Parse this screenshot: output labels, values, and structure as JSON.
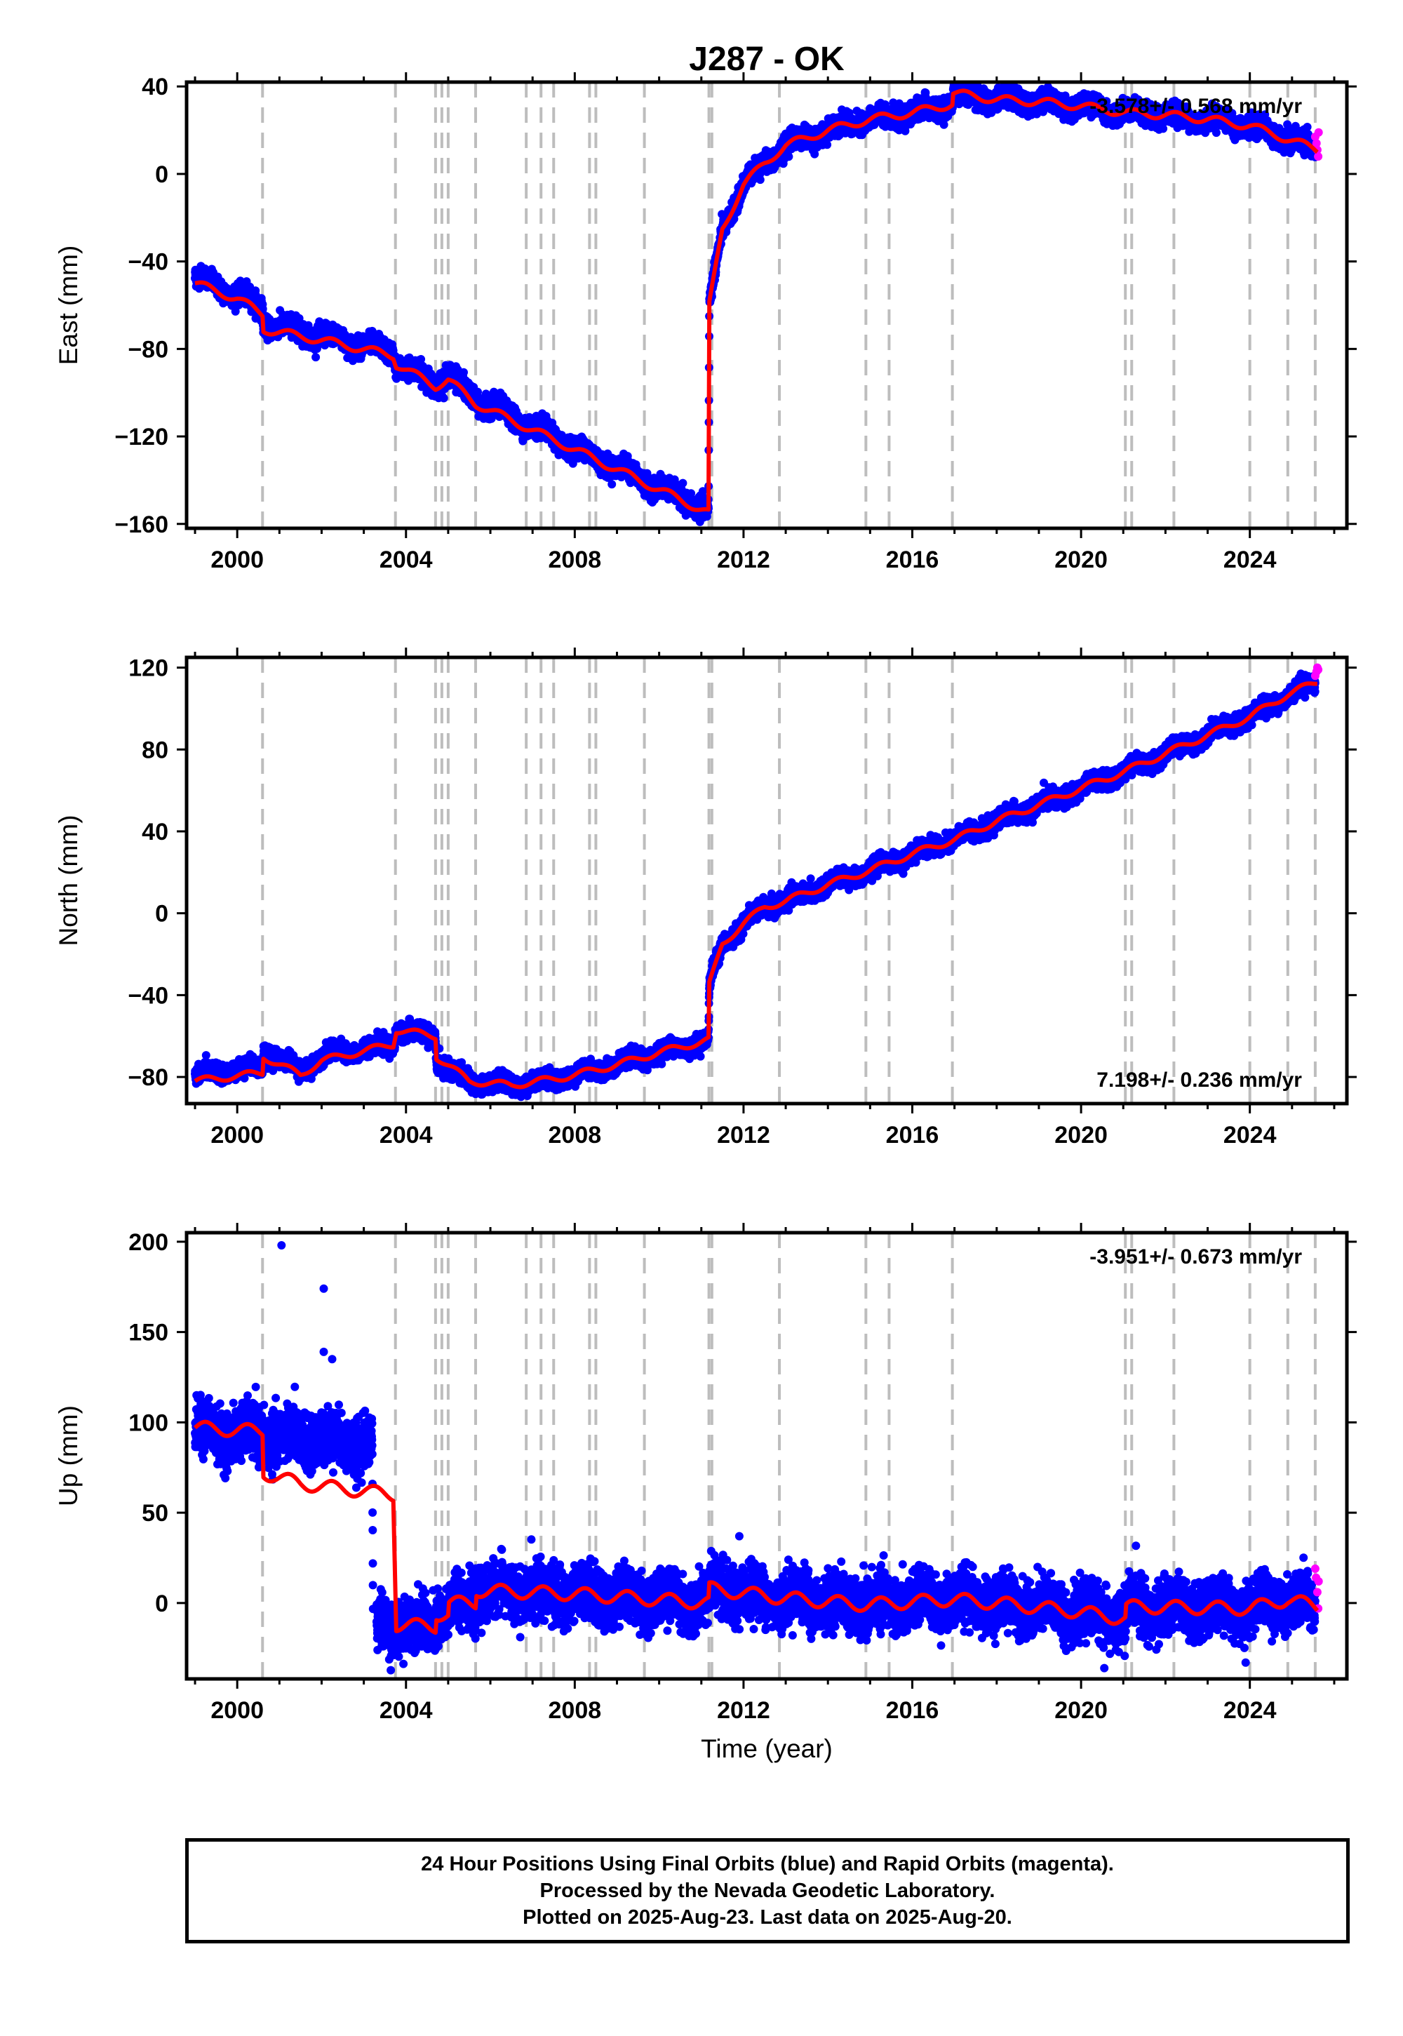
{
  "title": "J287 - OK",
  "colors": {
    "final": "#0000ff",
    "rapid": "#ff00ff",
    "model": "#ff0000",
    "event_line": "#bdbdbd"
  },
  "footer": {
    "line1": "24 Hour Positions Using Final Orbits (blue) and Rapid Orbits (magenta).",
    "line2": "Processed by the Nevada Geodetic Laboratory.",
    "line3": "Plotted on 2025-Aug-23. Last data on 2025-Aug-20."
  },
  "chart_data": [
    {
      "type": "scatter",
      "name": "East",
      "ylabel": "East (mm)",
      "xlabel": "",
      "xlim": [
        1998.8,
        2026.3
      ],
      "ylim": [
        -162,
        42
      ],
      "xticks": [
        2000,
        2004,
        2008,
        2012,
        2016,
        2020,
        2024
      ],
      "yticks": [
        -160,
        -120,
        -80,
        -40,
        0,
        40
      ],
      "rate_text": "-3.578+/- 0.568 mm/yr",
      "rate_position": "top-right",
      "event_years": [
        2000.6,
        2003.75,
        2004.7,
        2004.85,
        2005.0,
        2005.65,
        2006.85,
        2007.2,
        2007.5,
        2008.35,
        2008.5,
        2009.65,
        2011.18,
        2011.25,
        2012.85,
        2014.9,
        2015.45,
        2016.95,
        2021.05,
        2021.2,
        2022.2,
        2024.0,
        2024.9,
        2025.55
      ],
      "model": [
        [
          1999.0,
          -50
        ],
        [
          2000.0,
          -57
        ],
        [
          2000.6,
          -64
        ],
        [
          2000.62,
          -71
        ],
        [
          2002.0,
          -76
        ],
        [
          2003.7,
          -83
        ],
        [
          2003.77,
          -87
        ],
        [
          2004.7,
          -97
        ],
        [
          2005.0,
          -94
        ],
        [
          2005.65,
          -105
        ],
        [
          2008.0,
          -126
        ],
        [
          2011.17,
          -155
        ],
        [
          2011.19,
          -60
        ],
        [
          2011.5,
          -25
        ],
        [
          2012.0,
          -5
        ],
        [
          2012.5,
          5
        ],
        [
          2013.0,
          13
        ],
        [
          2014.0,
          20
        ],
        [
          2015.0,
          25
        ],
        [
          2016.0,
          28
        ],
        [
          2016.95,
          32
        ],
        [
          2016.97,
          37
        ],
        [
          2018.0,
          34
        ],
        [
          2019.0,
          33
        ],
        [
          2020.0,
          31
        ],
        [
          2021.05,
          28
        ],
        [
          2022.0,
          27
        ],
        [
          2023.0,
          25
        ],
        [
          2024.0,
          22
        ],
        [
          2024.9,
          16
        ],
        [
          2025.6,
          11
        ]
      ],
      "data": [
        [
          1999.0,
          -47
        ],
        [
          2000.0,
          -55
        ],
        [
          2000.6,
          -61
        ],
        [
          2000.62,
          -68
        ],
        [
          2002.0,
          -74
        ],
        [
          2003.7,
          -81
        ],
        [
          2003.77,
          -87
        ],
        [
          2004.7,
          -95
        ],
        [
          2005.0,
          -92
        ],
        [
          2005.65,
          -103
        ],
        [
          2008.0,
          -125
        ],
        [
          2011.17,
          -154
        ],
        [
          2011.19,
          -60
        ],
        [
          2011.5,
          -25
        ],
        [
          2012.0,
          -5
        ],
        [
          2012.5,
          5
        ],
        [
          2013.0,
          13
        ],
        [
          2014.0,
          20
        ],
        [
          2015.0,
          25
        ],
        [
          2016.0,
          28
        ],
        [
          2016.95,
          32
        ],
        [
          2016.97,
          37
        ],
        [
          2018.0,
          34
        ],
        [
          2019.0,
          33
        ],
        [
          2020.0,
          31
        ],
        [
          2021.05,
          28
        ],
        [
          2022.0,
          27
        ],
        [
          2023.0,
          25
        ],
        [
          2024.0,
          22
        ],
        [
          2024.9,
          16
        ],
        [
          2025.6,
          11
        ]
      ],
      "noise_mm": 2.2,
      "seasonal_mm": 2.0,
      "rapid_points": [
        [
          2025.55,
          17
        ],
        [
          2025.58,
          14
        ],
        [
          2025.6,
          11
        ],
        [
          2025.62,
          8
        ],
        [
          2025.63,
          19
        ]
      ]
    },
    {
      "type": "scatter",
      "name": "North",
      "ylabel": "North (mm)",
      "xlabel": "",
      "xlim": [
        1998.8,
        2026.3
      ],
      "ylim": [
        -93,
        125
      ],
      "xticks": [
        2000,
        2004,
        2008,
        2012,
        2016,
        2020,
        2024
      ],
      "yticks": [
        -80,
        -40,
        0,
        40,
        80,
        120
      ],
      "rate_text": "7.198+/- 0.236 mm/yr",
      "rate_position": "bottom-right",
      "event_years": [
        2000.6,
        2003.75,
        2004.7,
        2004.85,
        2005.0,
        2005.65,
        2006.85,
        2007.2,
        2007.5,
        2008.35,
        2008.5,
        2009.65,
        2011.18,
        2011.25,
        2012.85,
        2014.9,
        2015.45,
        2016.95,
        2021.05,
        2021.2,
        2022.2,
        2024.0,
        2024.9,
        2025.55
      ],
      "model": [
        [
          1999.0,
          -82
        ],
        [
          2000.6,
          -78
        ],
        [
          2000.62,
          -70
        ],
        [
          2001.5,
          -79
        ],
        [
          2002.0,
          -72
        ],
        [
          2003.7,
          -64
        ],
        [
          2003.77,
          -57
        ],
        [
          2004.7,
          -60
        ],
        [
          2004.72,
          -70
        ],
        [
          2005.5,
          -82
        ],
        [
          2006.5,
          -84
        ],
        [
          2007.5,
          -81
        ],
        [
          2008.0,
          -79
        ],
        [
          2009.0,
          -74
        ],
        [
          2010.0,
          -68
        ],
        [
          2011.17,
          -62
        ],
        [
          2011.19,
          -35
        ],
        [
          2011.5,
          -15
        ],
        [
          2012.0,
          -5
        ],
        [
          2012.5,
          3
        ],
        [
          2013.0,
          6
        ],
        [
          2014.0,
          14
        ],
        [
          2015.0,
          21
        ],
        [
          2016.0,
          29
        ],
        [
          2017.0,
          36
        ],
        [
          2018.0,
          45
        ],
        [
          2019.0,
          53
        ],
        [
          2020.0,
          61
        ],
        [
          2021.0,
          69
        ],
        [
          2022.0,
          78
        ],
        [
          2023.0,
          87
        ],
        [
          2024.0,
          96
        ],
        [
          2024.9,
          107
        ],
        [
          2025.6,
          113
        ]
      ],
      "data": [
        [
          1999.0,
          -79
        ],
        [
          2000.6,
          -75
        ],
        [
          2000.62,
          -67
        ],
        [
          2001.5,
          -77
        ],
        [
          2002.0,
          -70
        ],
        [
          2003.7,
          -64
        ],
        [
          2003.77,
          -57
        ],
        [
          2004.7,
          -60
        ],
        [
          2004.72,
          -72
        ],
        [
          2005.5,
          -82
        ],
        [
          2006.5,
          -84
        ],
        [
          2007.5,
          -81
        ],
        [
          2008.0,
          -79
        ],
        [
          2009.0,
          -74
        ],
        [
          2010.0,
          -68
        ],
        [
          2011.17,
          -62
        ],
        [
          2011.19,
          -35
        ],
        [
          2011.5,
          -15
        ],
        [
          2012.0,
          -5
        ],
        [
          2012.5,
          3
        ],
        [
          2013.0,
          6
        ],
        [
          2014.0,
          14
        ],
        [
          2015.0,
          21
        ],
        [
          2016.0,
          29
        ],
        [
          2017.0,
          36
        ],
        [
          2018.0,
          45
        ],
        [
          2019.0,
          53
        ],
        [
          2020.0,
          61
        ],
        [
          2021.0,
          69
        ],
        [
          2022.0,
          78
        ],
        [
          2023.0,
          87
        ],
        [
          2024.0,
          96
        ],
        [
          2024.9,
          107
        ],
        [
          2025.6,
          113
        ]
      ],
      "noise_mm": 2.0,
      "seasonal_mm": 1.8,
      "rapid_points": [
        [
          2025.55,
          116
        ],
        [
          2025.58,
          118
        ],
        [
          2025.6,
          120
        ],
        [
          2025.62,
          119
        ]
      ]
    },
    {
      "type": "scatter",
      "name": "Up",
      "ylabel": "Up (mm)",
      "xlabel": "Time (year)",
      "xlim": [
        1998.8,
        2026.3
      ],
      "ylim": [
        -42,
        205
      ],
      "xticks": [
        2000,
        2004,
        2008,
        2012,
        2016,
        2020,
        2024
      ],
      "yticks": [
        0,
        50,
        100,
        150,
        200
      ],
      "rate_text": "-3.951+/- 0.673 mm/yr",
      "rate_position": "top-right",
      "event_years": [
        2000.6,
        2003.75,
        2004.7,
        2004.85,
        2005.0,
        2005.65,
        2006.85,
        2007.2,
        2007.5,
        2008.35,
        2008.5,
        2009.65,
        2011.18,
        2011.25,
        2012.85,
        2014.9,
        2015.45,
        2016.95,
        2021.05,
        2021.2,
        2022.2,
        2024.0,
        2024.9,
        2025.55
      ],
      "model": [
        [
          1999.0,
          97
        ],
        [
          2000.6,
          95
        ],
        [
          2000.62,
          72
        ],
        [
          2001.5,
          66
        ],
        [
          2003.7,
          60
        ],
        [
          2003.77,
          -12
        ],
        [
          2004.7,
          -13
        ],
        [
          2004.72,
          -6
        ],
        [
          2005.0,
          -7
        ],
        [
          2005.02,
          0
        ],
        [
          2005.65,
          0
        ],
        [
          2005.67,
          7
        ],
        [
          2008.0,
          5
        ],
        [
          2011.17,
          0
        ],
        [
          2011.19,
          8
        ],
        [
          2012.85,
          3
        ],
        [
          2014.9,
          -1
        ],
        [
          2016.95,
          2
        ],
        [
          2018.0,
          0
        ],
        [
          2020.0,
          -5
        ],
        [
          2021.05,
          -9
        ],
        [
          2021.07,
          -2
        ],
        [
          2024.0,
          -3
        ],
        [
          2024.9,
          2
        ],
        [
          2025.6,
          -2
        ]
      ],
      "data": [
        [
          1999.0,
          95
        ],
        [
          2000.6,
          93
        ],
        [
          2000.62,
          93
        ],
        [
          2003.2,
          88
        ],
        [
          2003.22,
          -13
        ],
        [
          2003.77,
          -12
        ],
        [
          2004.7,
          -13
        ],
        [
          2004.72,
          -6
        ],
        [
          2005.0,
          -7
        ],
        [
          2005.02,
          0
        ],
        [
          2005.65,
          0
        ],
        [
          2005.67,
          7
        ],
        [
          2008.0,
          5
        ],
        [
          2011.17,
          0
        ],
        [
          2011.19,
          8
        ],
        [
          2012.85,
          3
        ],
        [
          2014.9,
          -1
        ],
        [
          2016.95,
          2
        ],
        [
          2018.0,
          0
        ],
        [
          2020.0,
          -5
        ],
        [
          2021.05,
          -9
        ],
        [
          2021.07,
          -2
        ],
        [
          2024.0,
          -3
        ],
        [
          2024.9,
          2
        ],
        [
          2025.6,
          -2
        ]
      ],
      "gaps": [
        [
          2003.22,
          2003.3
        ]
      ],
      "noise_mm": 7.0,
      "seasonal_mm": 4.0,
      "outliers": [
        [
          2001.05,
          198
        ],
        [
          2002.05,
          174
        ],
        [
          2002.05,
          139
        ],
        [
          2002.25,
          135
        ],
        [
          2011.9,
          37
        ],
        [
          2020.55,
          -36
        ],
        [
          2023.9,
          -33
        ]
      ],
      "rapid_points": [
        [
          2025.55,
          19
        ],
        [
          2025.57,
          14
        ],
        [
          2025.6,
          6
        ],
        [
          2025.62,
          -3
        ],
        [
          2025.63,
          12
        ]
      ]
    }
  ]
}
